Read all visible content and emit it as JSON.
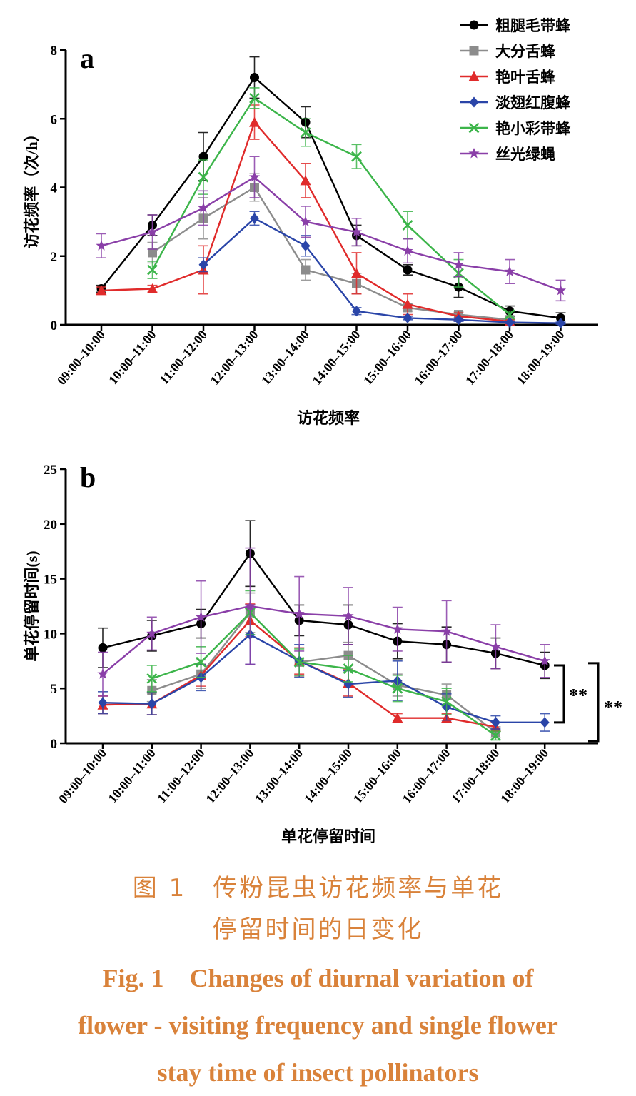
{
  "chart_data": [
    {
      "type": "line",
      "panel_label": "a",
      "ylabel": "访花频率（次/h）",
      "xlabel": "访花频率",
      "ylim": [
        0,
        8
      ],
      "yticks": [
        "0",
        "2",
        "4",
        "6",
        "8"
      ],
      "categories": [
        "09:00–10:00",
        "10:00–11:00",
        "11:00–12:00",
        "12:00–13:00",
        "13:00–14:00",
        "14:00–15:00",
        "15:00–16:00",
        "16:00–17:00",
        "17:00–18:00",
        "18:00–19:00"
      ],
      "legend_position": "top-right",
      "series": [
        {
          "name": "粗腿毛带蜂",
          "color": "#000000",
          "marker": "circle",
          "values": [
            1.05,
            2.9,
            4.9,
            7.2,
            5.9,
            2.6,
            1.6,
            1.1,
            0.4,
            0.2
          ],
          "errors": [
            0.1,
            0.3,
            0.7,
            0.6,
            0.45,
            0.3,
            0.15,
            0.3,
            0.15,
            0.15
          ]
        },
        {
          "name": "大分舌蜂",
          "color": "#8c8c8c",
          "marker": "square",
          "values": [
            null,
            2.1,
            3.1,
            4.0,
            1.6,
            1.2,
            0.5,
            0.3,
            0.15,
            null
          ],
          "errors": [
            null,
            0.3,
            0.6,
            0.4,
            0.3,
            0.3,
            0.1,
            0.1,
            0.05,
            null
          ]
        },
        {
          "name": "艳叶舌蜂",
          "color": "#e02b2b",
          "marker": "triangle",
          "values": [
            1.0,
            1.05,
            1.6,
            5.9,
            4.2,
            1.5,
            0.6,
            0.25,
            0.1,
            null
          ],
          "errors": [
            0.1,
            0.1,
            0.7,
            0.5,
            0.5,
            0.6,
            0.3,
            0.1,
            0.05,
            null
          ]
        },
        {
          "name": "淡翅红腹蜂",
          "color": "#2a45a8",
          "marker": "diamond",
          "values": [
            null,
            null,
            1.75,
            3.1,
            2.3,
            0.4,
            0.2,
            0.15,
            0.07,
            0.05
          ],
          "errors": [
            null,
            null,
            0.2,
            0.2,
            0.3,
            0.1,
            0.05,
            0.05,
            0.03,
            0.03
          ]
        },
        {
          "name": "艳小彩带蜂",
          "color": "#3cb54a",
          "marker": "x",
          "values": [
            null,
            1.6,
            4.3,
            6.6,
            5.6,
            4.9,
            2.9,
            1.5,
            0.3,
            null
          ],
          "errors": [
            null,
            0.25,
            0.5,
            0.3,
            0.4,
            0.35,
            0.4,
            0.4,
            0.1,
            null
          ]
        },
        {
          "name": "丝光绿蝇",
          "color": "#8a3fa8",
          "marker": "star",
          "values": [
            2.3,
            2.7,
            3.4,
            4.3,
            3.0,
            2.7,
            2.15,
            1.75,
            1.55,
            1.0
          ],
          "errors": [
            0.35,
            0.5,
            0.5,
            0.6,
            0.45,
            0.4,
            0.35,
            0.35,
            0.35,
            0.3
          ]
        }
      ]
    },
    {
      "type": "line",
      "panel_label": "b",
      "ylabel": "单花停留时间(s)",
      "xlabel": "单花停留时间",
      "ylim": [
        0,
        25
      ],
      "yticks": [
        "0",
        "5",
        "10",
        "15",
        "20",
        "25"
      ],
      "categories": [
        "09:00–10:00",
        "10:00–11:00",
        "11:00–12:00",
        "12:00–13:00",
        "13:00–14:00",
        "14:00–15:00",
        "15:00–16:00",
        "16:00–17:00",
        "17:00–18:00",
        "18:00–19:00"
      ],
      "significance": [
        "**",
        "**"
      ],
      "series": [
        {
          "name": "粗腿毛带蜂",
          "color": "#000000",
          "marker": "circle",
          "values": [
            8.7,
            9.8,
            10.9,
            17.3,
            11.2,
            10.8,
            9.3,
            9.0,
            8.2,
            7.1
          ],
          "errors": [
            1.8,
            1.4,
            1.3,
            3.0,
            1.4,
            1.8,
            1.6,
            1.6,
            1.4,
            1.2
          ]
        },
        {
          "name": "大分舌蜂",
          "color": "#8c8c8c",
          "marker": "square",
          "values": [
            null,
            4.8,
            6.3,
            11.9,
            7.4,
            8.0,
            5.3,
            4.4,
            1.0,
            null
          ],
          "errors": [
            null,
            1.0,
            1.3,
            1.8,
            1.3,
            1.2,
            1.0,
            1.0,
            0.5,
            null
          ]
        },
        {
          "name": "艳叶舌蜂",
          "color": "#e02b2b",
          "marker": "triangle",
          "values": [
            3.5,
            3.6,
            6.2,
            11.2,
            7.5,
            5.5,
            2.3,
            2.3,
            1.5,
            null
          ],
          "errors": [
            0.8,
            1.0,
            1.0,
            1.5,
            1.2,
            1.2,
            0.4,
            0.4,
            0.4,
            null
          ]
        },
        {
          "name": "淡翅红腹蜂",
          "color": "#2a45a8",
          "marker": "diamond",
          "values": [
            3.7,
            3.6,
            6.0,
            9.9,
            7.5,
            5.4,
            5.7,
            3.3,
            1.9,
            1.9
          ],
          "errors": [
            1.0,
            1.0,
            1.2,
            2.7,
            1.5,
            1.2,
            1.8,
            1.2,
            0.6,
            0.8
          ]
        },
        {
          "name": "艳小彩带蜂",
          "color": "#3cb54a",
          "marker": "x",
          "values": [
            null,
            5.9,
            7.4,
            11.9,
            7.4,
            6.8,
            5.0,
            3.8,
            0.7,
            null
          ],
          "errors": [
            null,
            1.2,
            1.4,
            2.0,
            1.2,
            1.2,
            1.2,
            1.2,
            0.4,
            null
          ]
        },
        {
          "name": "丝光绿蝇",
          "color": "#8a3fa8",
          "marker": "star",
          "values": [
            6.3,
            10.0,
            11.5,
            12.5,
            11.8,
            11.6,
            10.4,
            10.2,
            8.8,
            7.5
          ],
          "errors": [
            2.0,
            1.5,
            3.3,
            5.3,
            3.4,
            2.6,
            2.0,
            2.8,
            2.0,
            1.5
          ]
        }
      ]
    }
  ],
  "caption": {
    "zh_line1": "图 1　传粉昆虫访花频率与单花",
    "zh_line2": "停留时间的日变化",
    "en_line1": "Fig. 1　Changes of diurnal variation of",
    "en_line2": "flower - visiting frequency and single flower",
    "en_line3": "stay time of insect pollinators"
  }
}
